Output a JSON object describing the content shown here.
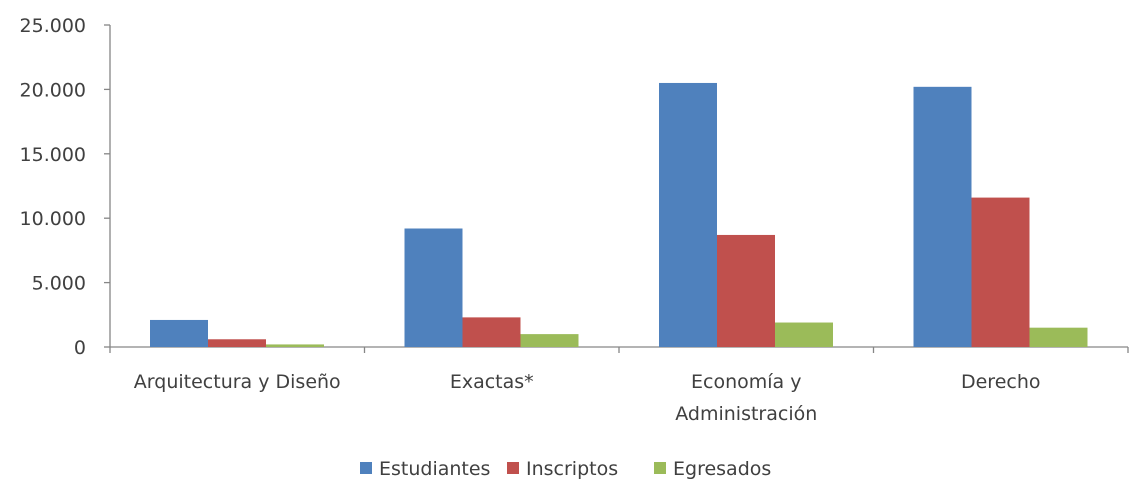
{
  "chart_data": {
    "type": "bar",
    "title": "",
    "xlabel": "",
    "ylabel": "",
    "categories": [
      [
        "Arquitectura y Diseño"
      ],
      [
        "Exactas*"
      ],
      [
        "Economía y",
        "Administración"
      ],
      [
        "Derecho"
      ]
    ],
    "series": [
      {
        "name": "Estudiantes",
        "color": "#4f81bd",
        "values": [
          2100,
          9200,
          20500,
          20200
        ]
      },
      {
        "name": "Inscriptos",
        "color": "#c0504d",
        "values": [
          600,
          2300,
          8700,
          11600
        ]
      },
      {
        "name": "Egresados",
        "color": "#9bbb59",
        "values": [
          200,
          1000,
          1900,
          1500
        ]
      }
    ],
    "ylim": [
      0,
      25000
    ],
    "yticks": [
      {
        "value": 0,
        "label": "0"
      },
      {
        "value": 5000,
        "label": "5.000"
      },
      {
        "value": 10000,
        "label": "10.000"
      },
      {
        "value": 15000,
        "label": "15.000"
      },
      {
        "value": 20000,
        "label": "20.000"
      },
      {
        "value": 25000,
        "label": "25.000"
      }
    ],
    "grid": false,
    "legend_position": "bottom"
  }
}
